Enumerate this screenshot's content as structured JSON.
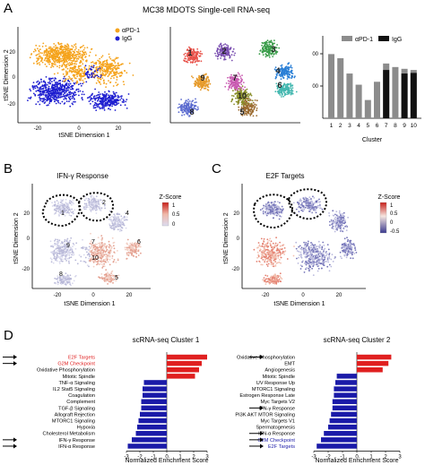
{
  "panel_labels": {
    "a": "A",
    "b": "B",
    "c": "C",
    "d": "D"
  },
  "panel_a": {
    "title": "MC38 MDOTS Single-cell RNA-seq",
    "legend": [
      {
        "label": "αPD-1",
        "color": "#f5a31c"
      },
      {
        "label": "IgG",
        "color": "#1f1fd0"
      }
    ],
    "tsne": {
      "xlabel": "tSNE Dimension 1",
      "ylabel": "tSNE Dimension 2",
      "xticks": [
        "-20",
        "0",
        "20"
      ],
      "yticks": [
        "20",
        "0",
        "-20"
      ]
    },
    "cluster_numbers": [
      "1",
      "2",
      "3",
      "4",
      "5",
      "6",
      "7",
      "8",
      "9",
      "10"
    ]
  },
  "chart_data": [
    {
      "type": "bar",
      "xlabel": "Cluster",
      "categories": [
        "1",
        "2",
        "3",
        "4",
        "5",
        "6",
        "7",
        "8",
        "9",
        "10"
      ],
      "yticks": [
        "00",
        "00"
      ],
      "ylim": [
        0,
        1400
      ],
      "series": [
        {
          "name": "αPD-1",
          "color": "#8c8c8c",
          "values": [
            1090,
            1020,
            760,
            570,
            310,
            620,
            930,
            870,
            840,
            820
          ]
        },
        {
          "name": "IgG",
          "color": "#111111",
          "values": [
            0,
            0,
            0,
            0,
            0,
            0,
            820,
            0,
            760,
            770
          ]
        }
      ]
    },
    {
      "type": "bar",
      "title": "scRNA-seq Cluster 1",
      "xlabel": "Normalized Enrichment Score",
      "xlim": [
        -3,
        3
      ],
      "xticks": [
        "-3",
        "-2",
        "-1",
        "0",
        "1",
        "2",
        "3"
      ],
      "categories": [
        "E2F Targets",
        "G2M Checkpoint",
        "Oxidative Phosphorylation",
        "Mitotic Spindle",
        "TNF-α Signaling",
        "IL2 Stat5 Signaling",
        "Coagulation",
        "Complement",
        "TGF-β Signaling",
        "Allograft Rejection",
        "MTORC1 Signaling",
        "Hypoxia",
        "Cholesterol Metabolism",
        "IFN-γ Response",
        "IFN-α Response"
      ],
      "values": [
        3.0,
        2.6,
        2.4,
        2.1,
        -1.7,
        -1.8,
        -1.8,
        -1.9,
        -1.9,
        -2.0,
        -2.1,
        -2.2,
        -2.3,
        -2.6,
        -2.9
      ],
      "highlighted": [
        "E2F Targets",
        "G2M Checkpoint"
      ],
      "arrows": [
        "E2F Targets",
        "G2M Checkpoint",
        "IFN-γ Response",
        "IFN-α Response"
      ]
    },
    {
      "type": "bar",
      "title": "scRNA-seq Cluster 2",
      "xlabel": "Normalized Enrichment Score",
      "xlim": [
        -3,
        3
      ],
      "xticks": [
        "-3",
        "-2",
        "-1",
        "0",
        "1",
        "2",
        "3"
      ],
      "categories": [
        "Oxidative Phosphorylation",
        "EMT",
        "Angiogenesis",
        "Mitotic Spindle",
        "UV Response Up",
        "MTORC1 Signaling",
        "Estrogen Response Late",
        "Myc Targets V2",
        "IFN-γ Response",
        "PI3K AKT MTOR Signaling",
        "Myc Targets V1",
        "Spermatogenesis",
        "IFN-α Response",
        "G2M Checkpoint",
        "E2F Targets"
      ],
      "values": [
        2.4,
        2.2,
        1.8,
        -1.4,
        -1.5,
        -1.6,
        -1.6,
        -1.7,
        -1.7,
        -1.8,
        -1.9,
        -2.0,
        -2.3,
        -2.5,
        -2.8
      ],
      "highlighted": [
        "G2M Checkpoint",
        "E2F Targets"
      ],
      "arrows": [
        "Oxidative Phosphorylation",
        "IFN-γ Response",
        "IFN-α Response",
        "G2M Checkpoint",
        "E2F Targets"
      ]
    }
  ],
  "panel_b": {
    "title": "IFN-γ Response",
    "xlabel": "tSNE Dimension 1",
    "ylabel": "tSNE Dimension 2",
    "colorbar_label": "Z-Score",
    "colorbar_ticks": [
      "1",
      "0.5",
      "0"
    ],
    "xticks": [
      "-20",
      "0",
      "20"
    ],
    "yticks": [
      "20",
      "0",
      "-20"
    ]
  },
  "panel_c": {
    "title": "E2F Targets",
    "xlabel": "tSNE Dimension 1",
    "ylabel": "tSNE Dimension 2",
    "colorbar_label": "Z-Score",
    "colorbar_ticks": [
      "1",
      "0.5",
      "0",
      "-0.5"
    ],
    "xticks": [
      "-20",
      "0",
      "20"
    ],
    "yticks": [
      "20",
      "0",
      "-20"
    ]
  },
  "colors": {
    "up": "#e02020",
    "down": "#1a1aa8",
    "highlight_label": "#e02020",
    "blue_label": "#1a1aa8"
  }
}
